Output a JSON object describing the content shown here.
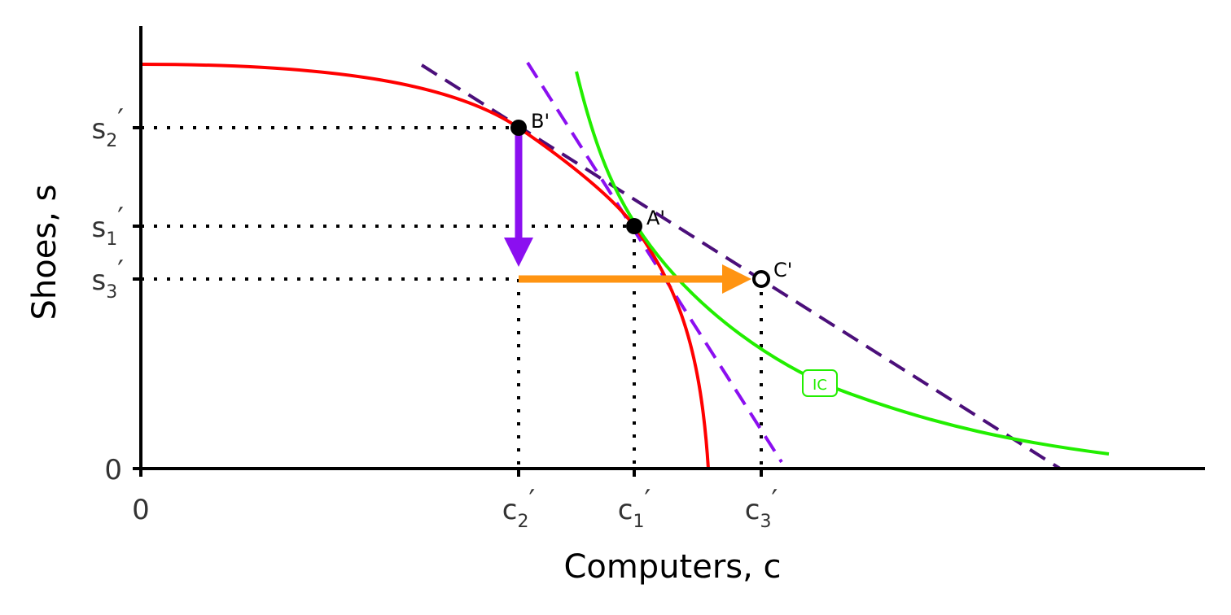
{
  "axes": {
    "x_label": "Computers, c",
    "y_label": "Shoes, s",
    "x_origin": "0",
    "y_origin": "0"
  },
  "x_ticks": [
    {
      "base": "c",
      "sub": "2",
      "mark": "′"
    },
    {
      "base": "c",
      "sub": "1",
      "mark": "′"
    },
    {
      "base": "c",
      "sub": "3",
      "mark": "′"
    }
  ],
  "y_ticks": [
    {
      "base": "s",
      "sub": "2",
      "mark": "′"
    },
    {
      "base": "s",
      "sub": "1",
      "mark": "′"
    },
    {
      "base": "s",
      "sub": "3",
      "mark": "′"
    }
  ],
  "points": [
    {
      "label": "B'"
    },
    {
      "label": "A'"
    },
    {
      "label": "C'"
    }
  ],
  "curve_labels": {
    "ic": "IC"
  }
}
